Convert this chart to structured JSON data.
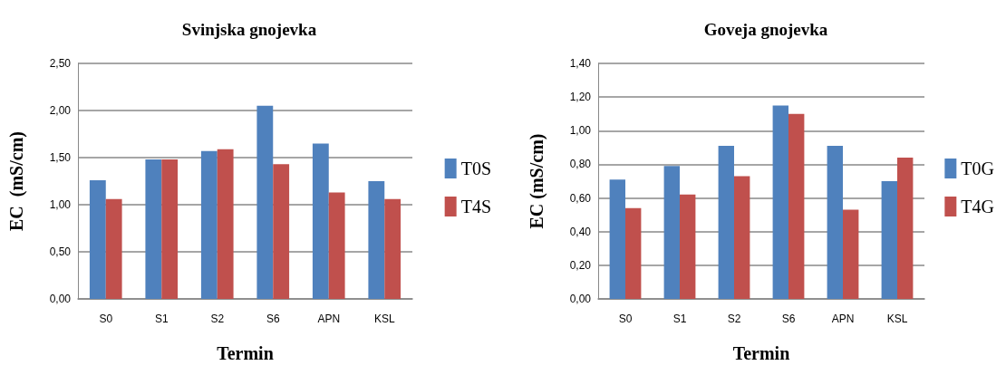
{
  "chart_data": [
    {
      "type": "bar",
      "title": "Svinjska gnojevka",
      "xlabel": "Termin",
      "ylabel": "EC  (mS/cm)",
      "categories": [
        "S0",
        "S1",
        "S2",
        "S6",
        "APN",
        "KSL"
      ],
      "series": [
        {
          "name": "T0S",
          "color": "#4f81bd",
          "values": [
            1.26,
            1.48,
            1.57,
            2.05,
            1.65,
            1.25
          ]
        },
        {
          "name": "T4S",
          "color": "#c0504d",
          "values": [
            1.06,
            1.48,
            1.59,
            1.43,
            1.13,
            1.06
          ]
        }
      ],
      "ylim": [
        0,
        2.5
      ],
      "yticks": [
        {
          "value": 0,
          "label": "0,00"
        },
        {
          "value": 0.5,
          "label": "0,50"
        },
        {
          "value": 1,
          "label": "1,00"
        },
        {
          "value": 1.5,
          "label": "1,50"
        },
        {
          "value": 2,
          "label": "2,00"
        },
        {
          "value": 2.5,
          "label": "2,50"
        }
      ],
      "grid": "y",
      "legend": "right"
    },
    {
      "type": "bar",
      "title": "Goveja gnojevka",
      "xlabel": "Termin",
      "ylabel": "EC (mS/cm)",
      "categories": [
        "S0",
        "S1",
        "S2",
        "S6",
        "APN",
        "KSL"
      ],
      "series": [
        {
          "name": "T0G",
          "color": "#4f81bd",
          "values": [
            0.71,
            0.79,
            0.91,
            1.15,
            0.91,
            0.7
          ]
        },
        {
          "name": "T4G",
          "color": "#c0504d",
          "values": [
            0.54,
            0.62,
            0.73,
            1.1,
            0.53,
            0.84
          ]
        }
      ],
      "ylim": [
        0,
        1.4
      ],
      "yticks": [
        {
          "value": 0,
          "label": "0,00"
        },
        {
          "value": 0.2,
          "label": "0,20"
        },
        {
          "value": 0.4,
          "label": "0,40"
        },
        {
          "value": 0.6,
          "label": "0,60"
        },
        {
          "value": 0.8,
          "label": "0,80"
        },
        {
          "value": 1,
          "label": "1,00"
        },
        {
          "value": 1.2,
          "label": "1,20"
        },
        {
          "value": 1.4,
          "label": "1,40"
        }
      ],
      "grid": "y",
      "legend": "right"
    }
  ]
}
